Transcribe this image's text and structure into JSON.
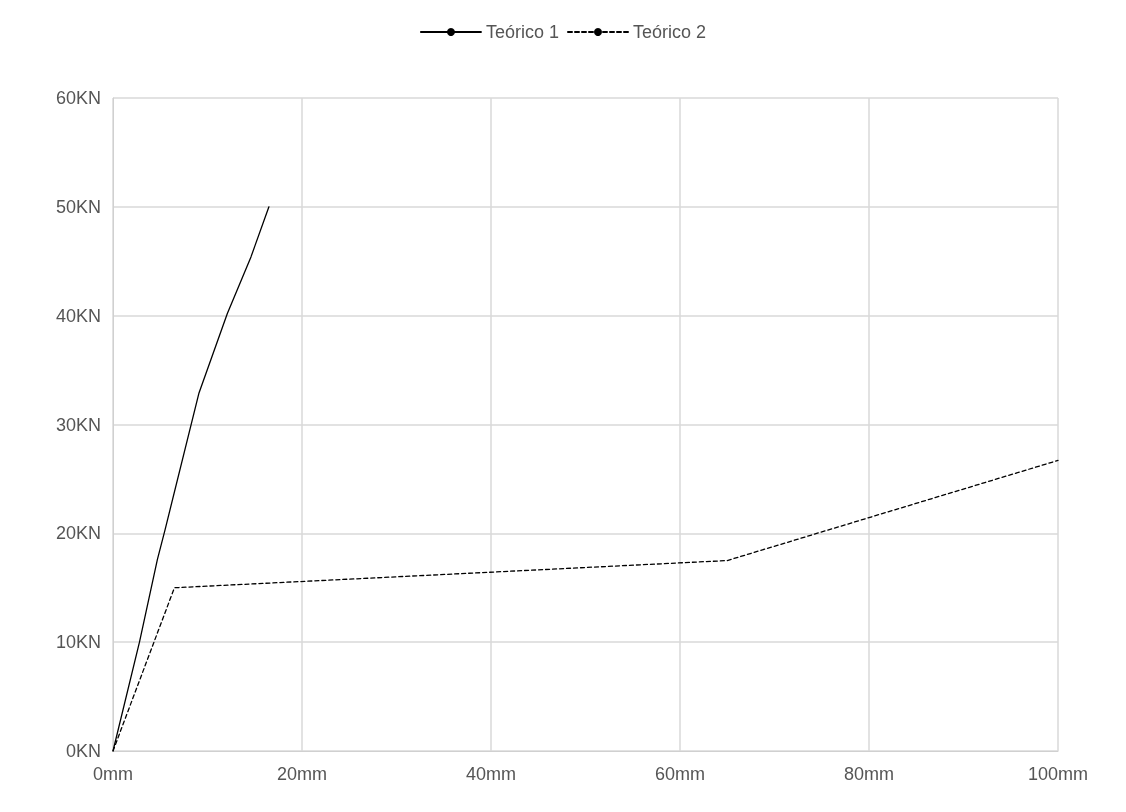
{
  "chart_data": {
    "type": "line",
    "legend": "top",
    "grid": true,
    "marker": "none",
    "xlim": [
      0,
      100
    ],
    "xticks": [
      {
        "value": 0,
        "label": "0mm"
      },
      {
        "value": 20,
        "label": "20mm"
      },
      {
        "value": 40,
        "label": "40mm"
      },
      {
        "value": 60,
        "label": "60mm"
      },
      {
        "value": 80,
        "label": "80mm"
      },
      {
        "value": 100,
        "label": "100mm"
      }
    ],
    "ylim": [
      0,
      60
    ],
    "yticks": [
      {
        "value": 0,
        "label": "0KN"
      },
      {
        "value": 10,
        "label": "10KN"
      },
      {
        "value": 20,
        "label": "20KN"
      },
      {
        "value": 30,
        "label": "30KN"
      },
      {
        "value": 40,
        "label": "40KN"
      },
      {
        "value": 50,
        "label": "50KN"
      },
      {
        "value": 60,
        "label": "60KN"
      }
    ],
    "series": [
      {
        "name": "Teórico 1",
        "color": "#000000",
        "line_style": "solid",
        "x": [
          0,
          2.8,
          4.7,
          5.5,
          9.1,
          12.1,
          14.6,
          16.5
        ],
        "values": [
          0,
          10,
          17.6,
          20.3,
          32.9,
          40.2,
          45.4,
          50
        ]
      },
      {
        "name": "Teórico 2",
        "color": "#000000",
        "line_style": "dashed",
        "x": [
          0,
          6.5,
          65,
          100
        ],
        "values": [
          0,
          15,
          17.5,
          26.7
        ]
      }
    ]
  }
}
